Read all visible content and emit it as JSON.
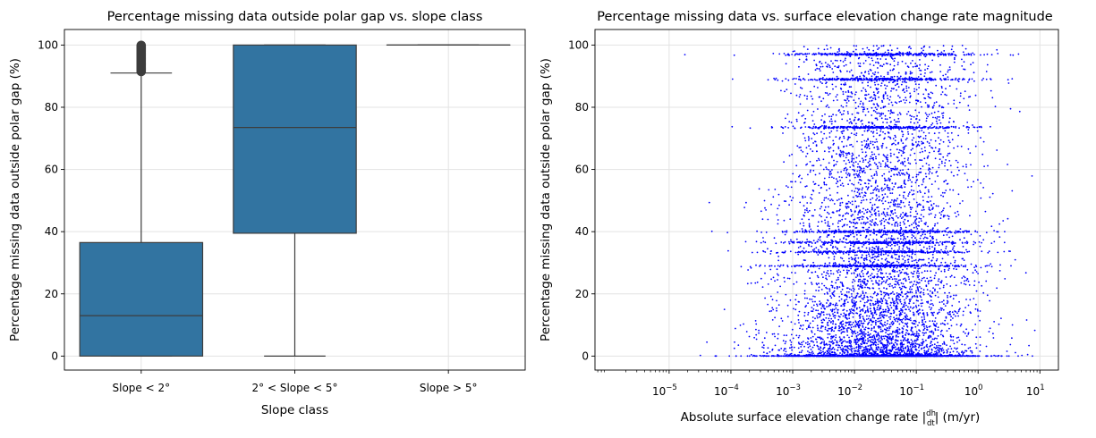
{
  "chart_data": [
    {
      "type": "box",
      "title": "Percentage missing data outside polar gap vs. slope class",
      "xlabel": "Slope class",
      "ylabel": "Percentage missing data outside polar gap (%)",
      "ylim": [
        -4.5,
        105
      ],
      "yticks": [
        0,
        20,
        40,
        60,
        80,
        100
      ],
      "grid": true,
      "categories": [
        "Slope < 2°",
        "2° < Slope < 5°",
        "Slope > 5°"
      ],
      "boxes": [
        {
          "name": "Slope < 2°",
          "whisker_low": 0,
          "q1": 0,
          "median": 13,
          "q3": 36.5,
          "whisker_high": 91,
          "outliers_from": 91.5,
          "outliers_to": 100
        },
        {
          "name": "2° < Slope < 5°",
          "whisker_low": 0,
          "q1": 39.5,
          "median": 73.5,
          "q3": 100,
          "whisker_high": 100
        },
        {
          "name": "Slope > 5°",
          "whisker_low": 100,
          "q1": 100,
          "median": 100,
          "q3": 100,
          "whisker_high": 100
        }
      ],
      "color": "#3274a1"
    },
    {
      "type": "scatter",
      "title": "Percentage missing data vs. surface elevation change rate magnitude",
      "xlabel": "Absolute surface elevation change rate |dh/dt| (m/yr)",
      "xlabel_prefix": "Absolute surface elevation change rate |",
      "xlabel_frac_num": "dh",
      "xlabel_frac_den": "dt",
      "xlabel_suffix": "| (m/yr)",
      "ylabel": "Percentage missing data outside polar gap (%)",
      "xscale": "log",
      "xlim_log10": [
        -6.2,
        1.3
      ],
      "ylim": [
        -4.5,
        105
      ],
      "xticks_exp": [
        -5,
        -4,
        -3,
        -2,
        -1,
        0,
        1
      ],
      "xtick_labels": [
        "10",
        "10",
        "10",
        "10",
        "10",
        "10",
        "10"
      ],
      "xtick_exps": [
        "−5",
        "−4",
        "−3",
        "−2",
        "−1",
        "0",
        "1"
      ],
      "yticks": [
        0,
        20,
        40,
        60,
        80,
        100
      ],
      "grid": true,
      "color": "#0000ff",
      "bands": [
        0,
        29,
        33.5,
        36.5,
        40,
        73.5,
        89,
        97
      ],
      "distribution": {
        "log10_center": -1.6,
        "log10_spread": 0.75,
        "n_points": 9000
      }
    }
  ]
}
